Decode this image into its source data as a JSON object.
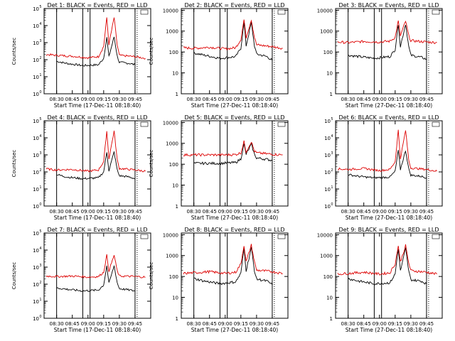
{
  "chart_data": [
    {
      "type": "line",
      "title": "Det 1: BLACK = Events, RED = LLD",
      "ylabel": "Counts/sec",
      "xlabel": "Start Time (17-Dec-11 08:18:40)",
      "x_ticks": [
        "08:30",
        "08:45",
        "09:00",
        "09:15",
        "09:30",
        "09:45"
      ],
      "y_scale": "log",
      "y_ticks": [
        "10^0",
        "10^1",
        "10^2",
        "10^3",
        "10^4",
        "10^5"
      ],
      "ylim": [
        1,
        100000
      ],
      "series": [
        {
          "name": "BLACK",
          "color": "#000000",
          "x": [
            "08:30",
            "08:40",
            "08:55",
            "09:10",
            "09:15",
            "09:18",
            "09:20",
            "09:25",
            "09:28",
            "09:30",
            "09:40",
            "09:45"
          ],
          "y": [
            80,
            60,
            45,
            50,
            120,
            2000,
            150,
            2200,
            160,
            70,
            60,
            50
          ]
        },
        {
          "name": "RED",
          "color": "#dd0000",
          "x": [
            "08:20",
            "08:30",
            "08:45",
            "09:00",
            "09:10",
            "09:15",
            "09:18",
            "09:20",
            "09:25",
            "09:28",
            "09:30",
            "09:45",
            "09:55"
          ],
          "y": [
            200,
            180,
            160,
            130,
            150,
            600,
            30000,
            800,
            30000,
            700,
            180,
            150,
            120
          ]
        }
      ]
    },
    {
      "type": "line",
      "title": "Det 2: BLACK = Events, RED = LLD",
      "ylabel": "Counts/sec",
      "xlabel": "Start Time (27-Dec-11 08:18:40)",
      "x_ticks": [
        "08:30",
        "08:45",
        "09:00",
        "09:15",
        "09:30",
        "09:45"
      ],
      "y_scale": "log",
      "y_ticks": [
        "1",
        "10",
        "100",
        "1000",
        "10000"
      ],
      "ylim": [
        1,
        12000
      ],
      "series": [
        {
          "name": "BLACK",
          "color": "#000000",
          "x": [
            "08:30",
            "08:40",
            "08:55",
            "09:10",
            "09:15",
            "09:18",
            "09:20",
            "09:25",
            "09:28",
            "09:30",
            "09:40",
            "09:45"
          ],
          "y": [
            90,
            70,
            50,
            60,
            150,
            2500,
            200,
            2500,
            200,
            80,
            60,
            40
          ]
        },
        {
          "name": "RED",
          "color": "#dd0000",
          "x": [
            "08:20",
            "08:30",
            "08:45",
            "09:00",
            "09:10",
            "09:15",
            "09:18",
            "09:20",
            "09:25",
            "09:28",
            "09:30",
            "09:45",
            "09:55"
          ],
          "y": [
            160,
            150,
            170,
            140,
            160,
            400,
            3500,
            500,
            3500,
            500,
            220,
            180,
            150
          ]
        }
      ]
    },
    {
      "type": "line",
      "title": "Det 3: BLACK = Events, RED = LLD",
      "ylabel": "",
      "xlabel": "Start Time (27-Dec-11 08:18:40)",
      "x_ticks": [
        "08:30",
        "08:45",
        "09:00",
        "09:15",
        "09:30",
        "09:45"
      ],
      "y_scale": "log",
      "y_ticks": [
        "1",
        "10",
        "100",
        "1000",
        "10000"
      ],
      "ylim": [
        1,
        12000
      ],
      "series": [
        {
          "name": "BLACK",
          "color": "#000000",
          "x": [
            "08:30",
            "08:40",
            "08:55",
            "09:10",
            "09:15",
            "09:18",
            "09:20",
            "09:25",
            "09:28",
            "09:30",
            "09:40",
            "09:45"
          ],
          "y": [
            70,
            60,
            50,
            60,
            130,
            2200,
            180,
            2200,
            180,
            70,
            55,
            45
          ]
        },
        {
          "name": "RED",
          "color": "#dd0000",
          "x": [
            "08:20",
            "08:30",
            "08:45",
            "09:00",
            "09:10",
            "09:15",
            "09:18",
            "09:20",
            "09:25",
            "09:28",
            "09:30",
            "09:45",
            "09:55"
          ],
          "y": [
            300,
            280,
            320,
            300,
            330,
            500,
            3000,
            600,
            3000,
            600,
            350,
            300,
            280
          ]
        }
      ]
    },
    {
      "type": "line",
      "title": "Det 4: BLACK = Events, RED = LLD",
      "ylabel": "Counts/sec",
      "xlabel": "Start Time (17-Dec-11 08:18:40)",
      "x_ticks": [
        "08:30",
        "08:45",
        "09:00",
        "09:15",
        "09:30",
        "09:45"
      ],
      "y_scale": "log",
      "y_ticks": [
        "10^0",
        "10^1",
        "10^2",
        "10^3",
        "10^4",
        "10^5"
      ],
      "ylim": [
        1,
        100000
      ],
      "series": [
        {
          "name": "BLACK",
          "color": "#000000",
          "x": [
            "08:30",
            "08:40",
            "08:55",
            "09:10",
            "09:15",
            "09:18",
            "09:20",
            "09:25",
            "09:28",
            "09:30",
            "09:40",
            "09:45"
          ],
          "y": [
            70,
            50,
            40,
            45,
            100,
            1500,
            120,
            1500,
            130,
            60,
            50,
            40
          ]
        },
        {
          "name": "RED",
          "color": "#dd0000",
          "x": [
            "08:20",
            "08:30",
            "08:45",
            "09:00",
            "09:10",
            "09:15",
            "09:18",
            "09:20",
            "09:25",
            "09:28",
            "09:30",
            "09:45",
            "09:55"
          ],
          "y": [
            150,
            130,
            140,
            110,
            130,
            400,
            25000,
            600,
            25000,
            500,
            160,
            130,
            110
          ]
        }
      ]
    },
    {
      "type": "line",
      "title": "Det 5: BLACK = Events, RED = LLD",
      "ylabel": "Counts/sec",
      "xlabel": "Start Time (27-Dec-11 08:18:40)",
      "x_ticks": [
        "08:30",
        "08:45",
        "09:00",
        "09:15",
        "09:30",
        "09:45"
      ],
      "y_scale": "log",
      "y_ticks": [
        "1",
        "10",
        "100",
        "1000",
        "10000"
      ],
      "ylim": [
        1,
        12000
      ],
      "series": [
        {
          "name": "BLACK",
          "color": "#000000",
          "x": [
            "08:30",
            "08:40",
            "08:55",
            "09:10",
            "09:15",
            "09:18",
            "09:20",
            "09:25",
            "09:28",
            "09:30",
            "09:40",
            "09:45"
          ],
          "y": [
            110,
            110,
            110,
            120,
            180,
            900,
            300,
            900,
            300,
            200,
            170,
            150
          ]
        },
        {
          "name": "RED",
          "color": "#dd0000",
          "x": [
            "08:20",
            "08:30",
            "08:45",
            "09:00",
            "09:10",
            "09:15",
            "09:18",
            "09:20",
            "09:25",
            "09:28",
            "09:30",
            "09:45",
            "09:55"
          ],
          "y": [
            280,
            280,
            280,
            280,
            290,
            350,
            1200,
            400,
            1200,
            420,
            350,
            300,
            280
          ]
        }
      ]
    },
    {
      "type": "line",
      "title": "Det 6: BLACK = Events, RED = LLD",
      "ylabel": "",
      "xlabel": "Start Time (27-Dec-11 08:18:40)",
      "x_ticks": [
        "08:30",
        "08:45",
        "09:00",
        "09:15",
        "09:30",
        "09:45"
      ],
      "y_scale": "log",
      "y_ticks": [
        "10^0",
        "10^1",
        "10^2",
        "10^3",
        "10^4",
        "10^5"
      ],
      "ylim": [
        1,
        100000
      ],
      "series": [
        {
          "name": "BLACK",
          "color": "#000000",
          "x": [
            "08:30",
            "08:40",
            "08:55",
            "09:10",
            "09:15",
            "09:18",
            "09:20",
            "09:25",
            "09:28",
            "09:30",
            "09:40",
            "09:45"
          ],
          "y": [
            70,
            55,
            45,
            50,
            110,
            1800,
            140,
            1800,
            150,
            65,
            55,
            45
          ]
        },
        {
          "name": "RED",
          "color": "#dd0000",
          "x": [
            "08:20",
            "08:30",
            "08:45",
            "09:00",
            "09:10",
            "09:15",
            "09:18",
            "09:20",
            "09:25",
            "09:28",
            "09:30",
            "09:45",
            "09:55"
          ],
          "y": [
            150,
            140,
            160,
            120,
            140,
            400,
            28000,
            600,
            28000,
            500,
            170,
            140,
            110
          ]
        }
      ]
    },
    {
      "type": "line",
      "title": "Det 7: BLACK = Events, RED = LLD",
      "ylabel": "Counts/sec",
      "xlabel": "Start Time (17-Dec-11 08:18:40)",
      "x_ticks": [
        "08:30",
        "08:45",
        "09:00",
        "09:15",
        "09:30",
        "09:45"
      ],
      "y_scale": "log",
      "y_ticks": [
        "10^0",
        "10^1",
        "10^2",
        "10^3",
        "10^4",
        "10^5"
      ],
      "ylim": [
        1,
        100000
      ],
      "series": [
        {
          "name": "BLACK",
          "color": "#000000",
          "x": [
            "08:30",
            "08:40",
            "08:55",
            "09:10",
            "09:15",
            "09:18",
            "09:20",
            "09:25",
            "09:28",
            "09:30",
            "09:40",
            "09:45"
          ],
          "y": [
            60,
            50,
            40,
            45,
            90,
            1200,
            110,
            1200,
            120,
            55,
            45,
            40
          ]
        },
        {
          "name": "RED",
          "color": "#dd0000",
          "x": [
            "08:20",
            "08:30",
            "08:45",
            "09:00",
            "09:10",
            "09:15",
            "09:18",
            "09:20",
            "09:25",
            "09:28",
            "09:30",
            "09:45",
            "09:55"
          ],
          "y": [
            300,
            280,
            300,
            260,
            280,
            500,
            5000,
            600,
            5000,
            600,
            300,
            280,
            260
          ]
        }
      ]
    },
    {
      "type": "line",
      "title": "Det 8: BLACK = Events, RED = LLD",
      "ylabel": "Counts/sec",
      "xlabel": "Start Time (27-Dec-11 08:18:40)",
      "x_ticks": [
        "08:30",
        "08:45",
        "09:00",
        "09:15",
        "09:30",
        "09:45"
      ],
      "y_scale": "log",
      "y_ticks": [
        "1",
        "10",
        "100",
        "1000",
        "10000"
      ],
      "ylim": [
        1,
        12000
      ],
      "series": [
        {
          "name": "BLACK",
          "color": "#000000",
          "x": [
            "08:30",
            "08:40",
            "08:55",
            "09:10",
            "09:15",
            "09:18",
            "09:20",
            "09:25",
            "09:28",
            "09:30",
            "09:40",
            "09:45"
          ],
          "y": [
            80,
            60,
            45,
            55,
            140,
            2400,
            190,
            2400,
            190,
            75,
            60,
            40
          ]
        },
        {
          "name": "RED",
          "color": "#dd0000",
          "x": [
            "08:20",
            "08:30",
            "08:45",
            "09:00",
            "09:10",
            "09:15",
            "09:18",
            "09:20",
            "09:25",
            "09:28",
            "09:30",
            "09:45",
            "09:55"
          ],
          "y": [
            140,
            150,
            170,
            140,
            160,
            400,
            3200,
            500,
            3200,
            500,
            200,
            170,
            140
          ]
        }
      ]
    },
    {
      "type": "line",
      "title": "Det 9: BLACK = Events, RED = LLD",
      "ylabel": "",
      "xlabel": "Start Time (27-Dec-11 08:18:40)",
      "x_ticks": [
        "08:30",
        "08:45",
        "09:00",
        "09:15",
        "09:30",
        "09:45"
      ],
      "y_scale": "log",
      "y_ticks": [
        "1",
        "10",
        "100",
        "1000",
        "10000"
      ],
      "ylim": [
        1,
        12000
      ],
      "series": [
        {
          "name": "BLACK",
          "color": "#000000",
          "x": [
            "08:30",
            "08:40",
            "08:55",
            "09:10",
            "09:15",
            "09:18",
            "09:20",
            "09:25",
            "09:28",
            "09:30",
            "09:40",
            "09:45"
          ],
          "y": [
            80,
            60,
            45,
            50,
            130,
            2200,
            180,
            2200,
            180,
            70,
            60,
            45
          ]
        },
        {
          "name": "RED",
          "color": "#dd0000",
          "x": [
            "08:20",
            "08:30",
            "08:45",
            "09:00",
            "09:10",
            "09:15",
            "09:18",
            "09:20",
            "09:25",
            "09:28",
            "09:30",
            "09:45",
            "09:55"
          ],
          "y": [
            130,
            140,
            160,
            130,
            150,
            400,
            3000,
            500,
            3000,
            450,
            190,
            160,
            130
          ]
        }
      ]
    }
  ]
}
